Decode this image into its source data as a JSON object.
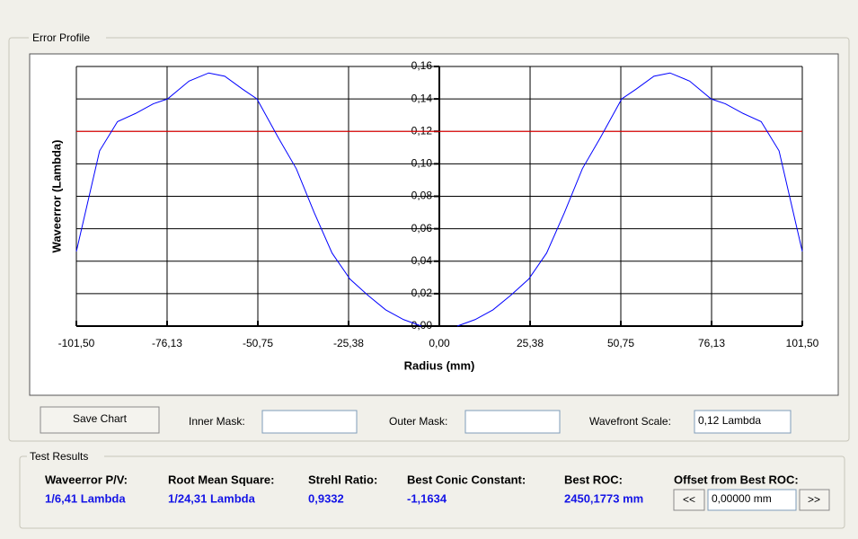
{
  "ui": {
    "error_profile_title": "Error Profile",
    "save_chart": "Save Chart",
    "inner_mask_label": "Inner Mask:",
    "outer_mask_label": "Outer Mask:",
    "wavefront_scale_label": "Wavefront Scale:",
    "wavefront_scale_value": "0,12 Lambda",
    "test_results_title": "Test Results",
    "results": [
      {
        "label": "Waveerror P/V:",
        "value": "1/6,41 Lambda"
      },
      {
        "label": "Root Mean Square:",
        "value": "1/24,31 Lambda"
      },
      {
        "label": "Strehl Ratio:",
        "value": "0,9332"
      },
      {
        "label": "Best Conic Constant:",
        "value": "-1,1634"
      },
      {
        "label": "Best ROC:",
        "value": "2450,1773 mm"
      }
    ],
    "offset_label": "Offset from Best ROC:",
    "offset_prev": "<<",
    "offset_value": "0,00000 mm",
    "offset_next": ">>"
  },
  "chart_data": {
    "type": "line",
    "x_label": "Radius (mm)",
    "y_label": "Waveerror (Lambda)",
    "x": [
      -101.5,
      -95,
      -90,
      -85,
      -80,
      -76,
      -70,
      -64.5,
      -60,
      -55,
      -51,
      -45,
      -40,
      -35,
      -30,
      -25,
      -20,
      -15,
      -10,
      -5,
      0,
      5,
      10,
      15,
      20,
      25,
      30,
      35,
      40,
      45,
      51,
      55,
      60,
      64.5,
      70,
      76,
      80,
      85,
      90,
      95,
      101.5
    ],
    "series": [
      {
        "color": "#0000ff",
        "values": [
          0.046,
          0.108,
          0.126,
          0.131,
          0.137,
          0.14,
          0.151,
          0.156,
          0.154,
          0.146,
          0.14,
          0.116,
          0.097,
          0.07,
          0.045,
          0.029,
          0.019,
          0.01,
          0.004,
          0.0,
          null,
          0.0,
          0.004,
          0.01,
          0.019,
          0.029,
          0.045,
          0.07,
          0.097,
          0.116,
          0.14,
          0.146,
          0.154,
          0.156,
          0.151,
          0.14,
          0.137,
          0.131,
          0.126,
          0.108,
          0.046
        ]
      }
    ],
    "reference_line": {
      "value": 0.12,
      "color": "#ff0000"
    },
    "xlim": [
      -101.5,
      101.5
    ],
    "xticks": [
      {
        "value": -101.5,
        "label": "-101,50"
      },
      {
        "value": -76.13,
        "label": "-76,13"
      },
      {
        "value": -50.75,
        "label": "-50,75"
      },
      {
        "value": -25.38,
        "label": "-25,38"
      },
      {
        "value": 0,
        "label": "0,00"
      },
      {
        "value": 25.38,
        "label": "25,38"
      },
      {
        "value": 50.75,
        "label": "50,75"
      },
      {
        "value": 76.13,
        "label": "76,13"
      },
      {
        "value": 101.5,
        "label": "101,50"
      }
    ],
    "ylim": [
      0,
      0.16
    ],
    "yticks": [
      {
        "value": 0,
        "label": "0,00"
      },
      {
        "value": 0.02,
        "label": "0,02"
      },
      {
        "value": 0.04,
        "label": "0,04"
      },
      {
        "value": 0.06,
        "label": "0,06"
      },
      {
        "value": 0.08,
        "label": "0,08"
      },
      {
        "value": 0.1,
        "label": "0,10"
      },
      {
        "value": 0.12,
        "label": "0,12"
      },
      {
        "value": 0.14,
        "label": "0,14"
      },
      {
        "value": 0.16,
        "label": "0,16"
      }
    ],
    "grid": true
  }
}
